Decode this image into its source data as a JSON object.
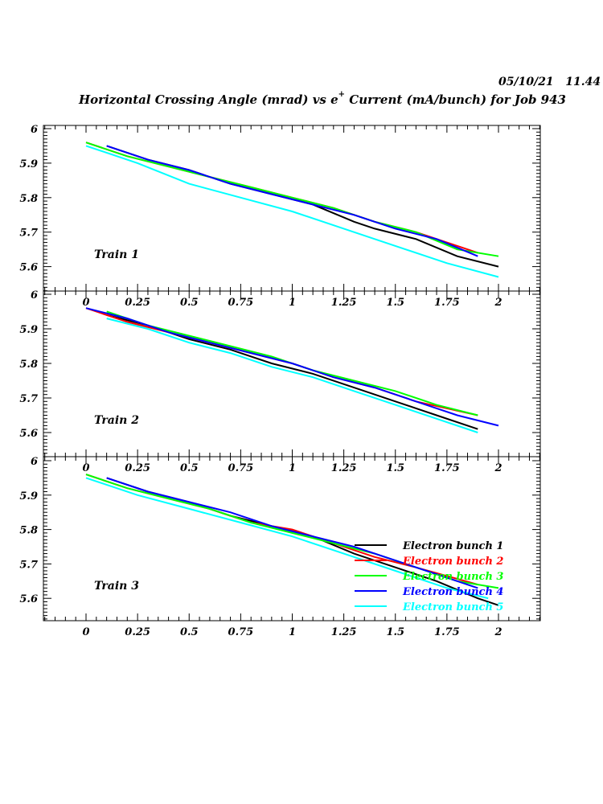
{
  "header": {
    "timestamp": "05/10/21   11.44",
    "title_prefix": "Horizontal Crossing Angle (mrad) vs e",
    "title_sup": "+",
    "title_suffix": " Current (mA/bunch) for Job 943"
  },
  "chart_data": [
    {
      "type": "line",
      "panel_label": "Train 1",
      "xlim": [
        -0.2,
        2.2
      ],
      "ylim": [
        5.55,
        6.0
      ],
      "xticks": [
        "0",
        "0.25",
        "0.5",
        "0.75",
        "1",
        "1.25",
        "1.5",
        "1.75",
        "2"
      ],
      "yticks": [
        "6",
        "5.9",
        "5.8",
        "5.7",
        "5.6"
      ],
      "series": [
        {
          "name": "Electron bunch 1",
          "color": "#000000",
          "x": [
            0.1,
            0.3,
            0.5,
            0.7,
            0.9,
            1.1,
            1.3,
            1.4,
            1.6,
            1.8,
            2.0
          ],
          "y": [
            5.95,
            5.91,
            5.88,
            5.84,
            5.81,
            5.78,
            5.73,
            5.71,
            5.68,
            5.63,
            5.6
          ]
        },
        {
          "name": "Electron bunch 2",
          "color": "#ff0000",
          "x": [
            0.0,
            0.2,
            0.4,
            0.6,
            0.8,
            1.0,
            1.2,
            1.4,
            1.6,
            1.9
          ],
          "y": [
            5.96,
            5.92,
            5.89,
            5.86,
            5.83,
            5.8,
            5.77,
            5.73,
            5.7,
            5.64
          ]
        },
        {
          "name": "Electron bunch 3",
          "color": "#00ff00",
          "x": [
            0.0,
            0.2,
            0.4,
            0.6,
            0.8,
            1.0,
            1.2,
            1.4,
            1.6,
            1.8,
            2.0
          ],
          "y": [
            5.96,
            5.92,
            5.89,
            5.86,
            5.83,
            5.8,
            5.77,
            5.73,
            5.7,
            5.65,
            5.63
          ]
        },
        {
          "name": "Electron bunch 4",
          "color": "#0000ff",
          "x": [
            0.1,
            0.3,
            0.5,
            0.7,
            0.9,
            1.1,
            1.3,
            1.5,
            1.7,
            1.9
          ],
          "y": [
            5.95,
            5.91,
            5.88,
            5.84,
            5.81,
            5.78,
            5.75,
            5.71,
            5.68,
            5.63
          ]
        },
        {
          "name": "Electron bunch 5",
          "color": "#00ffff",
          "x": [
            0.0,
            0.25,
            0.5,
            0.75,
            1.0,
            1.25,
            1.5,
            1.75,
            2.0
          ],
          "y": [
            5.95,
            5.9,
            5.84,
            5.8,
            5.76,
            5.71,
            5.66,
            5.61,
            5.57
          ]
        }
      ]
    },
    {
      "type": "line",
      "panel_label": "Train 2",
      "xlim": [
        -0.2,
        2.2
      ],
      "ylim": [
        5.55,
        6.0
      ],
      "xticks": [
        "0",
        "0.25",
        "0.5",
        "0.75",
        "1",
        "1.25",
        "1.5",
        "1.75",
        "2"
      ],
      "yticks": [
        "6",
        "5.9",
        "5.8",
        "5.7",
        "5.6"
      ],
      "series": [
        {
          "name": "Electron bunch 1",
          "color": "#000000",
          "x": [
            0.1,
            0.3,
            0.5,
            0.7,
            0.9,
            1.1,
            1.3,
            1.5,
            1.7,
            1.9
          ],
          "y": [
            5.94,
            5.91,
            5.87,
            5.84,
            5.8,
            5.77,
            5.73,
            5.69,
            5.65,
            5.61
          ]
        },
        {
          "name": "Electron bunch 2",
          "color": "#ff0000",
          "x": [
            0.0,
            0.2,
            0.4,
            0.6,
            0.8,
            1.0,
            1.2,
            1.4,
            1.6,
            1.9
          ],
          "y": [
            5.96,
            5.92,
            5.89,
            5.86,
            5.83,
            5.8,
            5.76,
            5.73,
            5.69,
            5.65
          ]
        },
        {
          "name": "Electron bunch 3",
          "color": "#00ff00",
          "x": [
            0.1,
            0.3,
            0.5,
            0.7,
            0.9,
            1.1,
            1.3,
            1.5,
            1.7,
            1.9
          ],
          "y": [
            5.95,
            5.91,
            5.88,
            5.85,
            5.82,
            5.78,
            5.75,
            5.72,
            5.68,
            5.65
          ]
        },
        {
          "name": "Electron bunch 4",
          "color": "#0000ff",
          "x": [
            0.0,
            0.2,
            0.4,
            0.6,
            0.8,
            1.0,
            1.2,
            1.4,
            1.6,
            1.8,
            2.0
          ],
          "y": [
            5.96,
            5.93,
            5.89,
            5.86,
            5.83,
            5.8,
            5.76,
            5.73,
            5.69,
            5.65,
            5.62
          ]
        },
        {
          "name": "Electron bunch 5",
          "color": "#00ffff",
          "x": [
            0.1,
            0.3,
            0.5,
            0.7,
            0.9,
            1.1,
            1.3,
            1.5,
            1.7,
            1.9
          ],
          "y": [
            5.93,
            5.9,
            5.86,
            5.83,
            5.79,
            5.76,
            5.72,
            5.68,
            5.64,
            5.6
          ]
        }
      ]
    },
    {
      "type": "line",
      "panel_label": "Train 3",
      "xlim": [
        -0.2,
        2.2
      ],
      "ylim": [
        5.53,
        6.0
      ],
      "xticks": [
        "0",
        "0.25",
        "0.5",
        "0.75",
        "1",
        "1.25",
        "1.5",
        "1.75",
        "2"
      ],
      "yticks": [
        "6",
        "5.9",
        "5.8",
        "5.7",
        "5.6"
      ],
      "legend_position": "lower-right",
      "series": [
        {
          "name": "Electron bunch 1",
          "color": "#000000",
          "x": [
            0.1,
            0.3,
            0.5,
            0.7,
            0.9,
            1.1,
            1.3,
            1.5,
            1.7,
            1.9,
            2.0
          ],
          "y": [
            5.95,
            5.91,
            5.88,
            5.84,
            5.81,
            5.78,
            5.73,
            5.69,
            5.65,
            5.6,
            5.58
          ]
        },
        {
          "name": "Electron bunch 2",
          "color": "#ff0000",
          "x": [
            0.0,
            0.2,
            0.4,
            0.6,
            0.8,
            1.0,
            1.2,
            1.4,
            1.6,
            1.9
          ],
          "y": [
            5.96,
            5.92,
            5.89,
            5.86,
            5.82,
            5.8,
            5.76,
            5.72,
            5.69,
            5.64
          ]
        },
        {
          "name": "Electron bunch 3",
          "color": "#00ff00",
          "x": [
            0.0,
            0.2,
            0.4,
            0.6,
            0.8,
            1.0,
            1.2,
            1.4,
            1.6,
            1.8,
            2.0
          ],
          "y": [
            5.96,
            5.92,
            5.89,
            5.86,
            5.82,
            5.79,
            5.76,
            5.73,
            5.69,
            5.65,
            5.63
          ]
        },
        {
          "name": "Electron bunch 4",
          "color": "#0000ff",
          "x": [
            0.1,
            0.3,
            0.5,
            0.7,
            0.9,
            1.1,
            1.3,
            1.5,
            1.7,
            1.9
          ],
          "y": [
            5.95,
            5.91,
            5.88,
            5.85,
            5.81,
            5.78,
            5.75,
            5.71,
            5.67,
            5.63
          ]
        },
        {
          "name": "Electron bunch 5",
          "color": "#00ffff",
          "x": [
            0.0,
            0.25,
            0.5,
            0.75,
            1.0,
            1.25,
            1.5,
            1.75,
            1.95
          ],
          "y": [
            5.95,
            5.9,
            5.86,
            5.82,
            5.78,
            5.73,
            5.68,
            5.63,
            5.6
          ]
        }
      ]
    }
  ]
}
